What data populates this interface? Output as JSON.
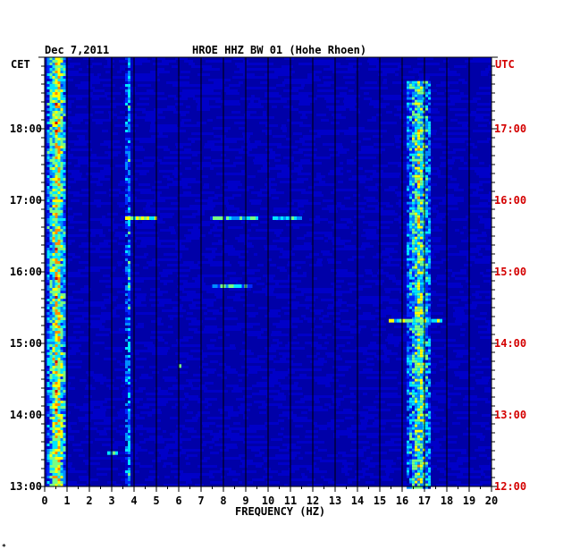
{
  "header": {
    "date": "Dec 7,2011",
    "station": "HROE HHZ BW 01 (Hohe Rhoen)"
  },
  "left_axis_label": "CET",
  "right_axis_label": "UTC",
  "footer_mark": "*",
  "colors": {
    "background": "#0000a8",
    "gridline": "#000000",
    "utc_text": "#d40000"
  },
  "chart_data": {
    "type": "heatmap",
    "xlabel": "FREQUENCY (HZ)",
    "xlim": [
      0,
      20
    ],
    "x_ticks": [
      "0",
      "1",
      "2",
      "3",
      "4",
      "5",
      "6",
      "7",
      "8",
      "9",
      "10",
      "11",
      "12",
      "13",
      "14",
      "15",
      "16",
      "17",
      "18",
      "19",
      "20"
    ],
    "y_ticks_cet": [
      "18:00",
      "17:00",
      "16:00",
      "15:00",
      "14:00",
      "13:00"
    ],
    "y_ticks_utc": [
      "17:00",
      "16:00",
      "15:00",
      "14:00",
      "13:00",
      "12:00"
    ],
    "ylim_cet": [
      "13:00",
      "19:00"
    ],
    "ylim_utc": [
      "12:00",
      "18:00"
    ],
    "grid": true,
    "features": [
      {
        "type": "band",
        "freq_range": [
          0.1,
          0.9
        ],
        "time_range_cet": [
          "13:00",
          "19:00"
        ],
        "intensity": "very high"
      },
      {
        "type": "band",
        "freq_range": [
          16.2,
          17.2
        ],
        "time_range_cet": [
          "13:00",
          "18:40"
        ],
        "intensity": "high"
      },
      {
        "type": "band",
        "freq_range": [
          3.6,
          3.75
        ],
        "time_range_cet": [
          "13:00",
          "19:00"
        ],
        "intensity": "medium"
      },
      {
        "type": "event",
        "freq_range": [
          3.6,
          5.0
        ],
        "time_cet": "16:45",
        "intensity": "high"
      },
      {
        "type": "event",
        "freq_range": [
          7.4,
          9.5
        ],
        "time_cet": "16:45",
        "intensity": "medium"
      },
      {
        "type": "event",
        "freq_range": [
          10.2,
          11.4
        ],
        "time_cet": "16:45",
        "intensity": "medium"
      },
      {
        "type": "event",
        "freq_range": [
          7.5,
          9.2
        ],
        "time_cet": "15:48",
        "intensity": "medium"
      },
      {
        "type": "event",
        "freq_range": [
          15.4,
          17.8
        ],
        "time_cet": "15:19",
        "intensity": "high"
      },
      {
        "type": "event",
        "freq_range": [
          6.0,
          6.1
        ],
        "time_cet": "14:41",
        "intensity": "high"
      },
      {
        "type": "event",
        "freq_range": [
          2.8,
          3.2
        ],
        "time_cet": "13:28",
        "intensity": "high"
      }
    ]
  }
}
